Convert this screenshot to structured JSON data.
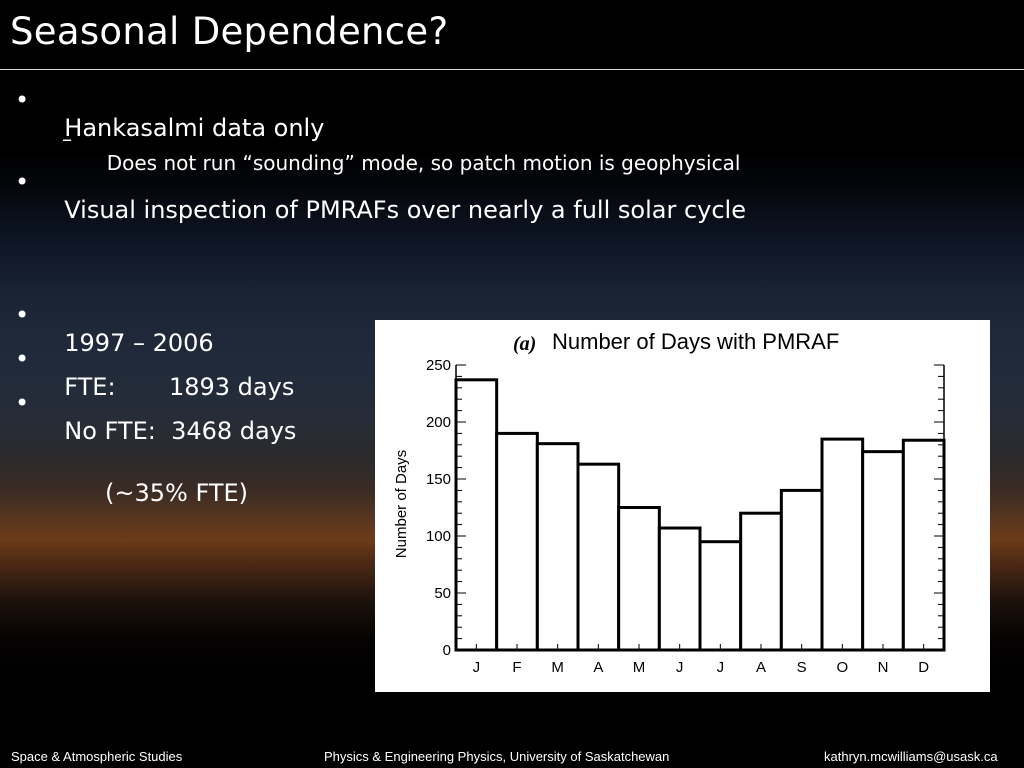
{
  "slide": {
    "title": "Seasonal Dependence?",
    "bullets": [
      {
        "text": "Hankasalmi data only"
      },
      {
        "sub": "Does not run “sounding” mode, so patch motion is geophysical"
      },
      {
        "text": "Visual inspection of PMRAFs over nearly a full solar cycle"
      },
      {
        "text": "1997 – 2006"
      },
      {
        "text": "FTE:       1893 days"
      },
      {
        "text": "No FTE:  3468 days"
      }
    ],
    "note": "(~35% FTE)"
  },
  "footer": {
    "left": "Space & Atmospheric Studies",
    "center": "Physics & Engineering Physics, University of Saskatchewan",
    "right": "kathryn.mcwilliams@usask.ca"
  },
  "chart_data": {
    "type": "bar",
    "title_prefix": "(a)",
    "title": "Number of Days with PMRAF",
    "xlabel": "",
    "ylabel": "Number of Days",
    "categories": [
      "J",
      "F",
      "M",
      "A",
      "M",
      "J",
      "J",
      "A",
      "S",
      "O",
      "N",
      "D"
    ],
    "values": [
      237,
      190,
      181,
      163,
      125,
      107,
      95,
      120,
      140,
      185,
      174,
      184
    ],
    "ylim": [
      0,
      250
    ],
    "yticks": [
      0,
      50,
      100,
      150,
      200,
      250
    ],
    "grid": false,
    "legend": "none"
  }
}
